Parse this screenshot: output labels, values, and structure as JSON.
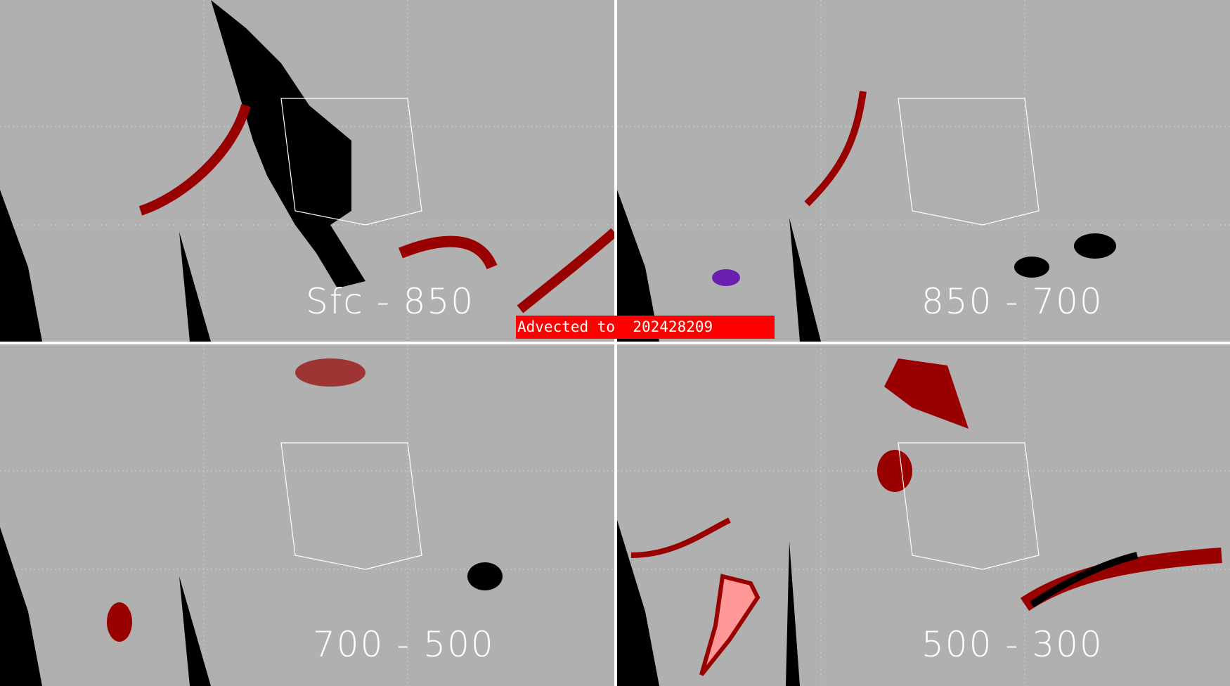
{
  "panels": [
    {
      "label": "Sfc - 850"
    },
    {
      "label": "850 - 700"
    },
    {
      "label": "700 - 500"
    },
    {
      "label": "500 - 300"
    }
  ],
  "banner": {
    "text": "Advected to  202428209",
    "color": "#ff0000"
  },
  "colors": {
    "background": "#b0b0b0",
    "no_data": "#000000",
    "high": "#990000",
    "highest": "#ff9999",
    "low": "#6a1fb0",
    "borders": "#ffffff"
  }
}
